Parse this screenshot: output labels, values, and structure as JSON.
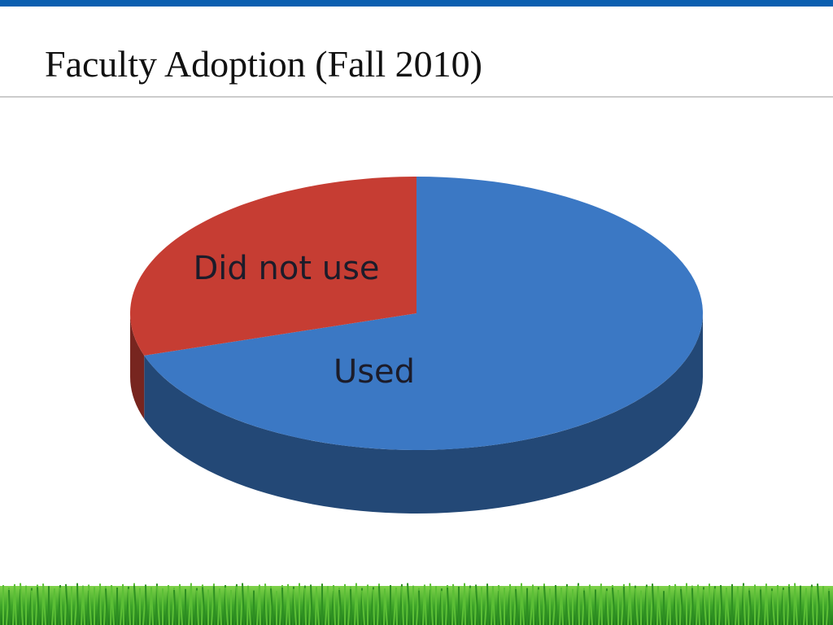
{
  "chart_data": {
    "type": "pie",
    "title": "Faculty Adoption (Fall 2010)",
    "categories": [
      "Used",
      "Did not use"
    ],
    "values": [
      70,
      30
    ],
    "colors": [
      "#3b78c4",
      "#c63d33"
    ]
  }
}
